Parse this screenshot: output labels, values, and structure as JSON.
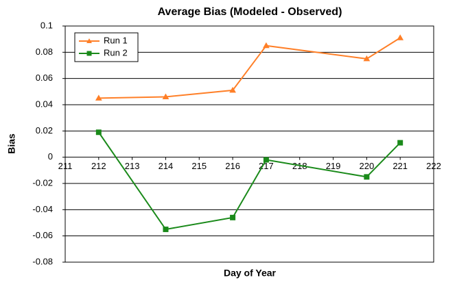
{
  "chart_data": {
    "type": "line",
    "title": "Average Bias (Modeled - Observed)",
    "x_label": "Day of Year",
    "y_label": "Bias",
    "x": [
      212,
      214,
      216,
      217,
      220,
      221
    ],
    "series": [
      {
        "name": "Run 1",
        "color": "#ff7f27",
        "marker": "triangle",
        "values": [
          0.045,
          0.046,
          0.051,
          0.085,
          0.075,
          0.091
        ]
      },
      {
        "name": "Run 2",
        "color": "#1a8a1a",
        "marker": "square",
        "values": [
          0.019,
          -0.055,
          -0.046,
          -0.002,
          -0.015,
          0.011
        ]
      }
    ],
    "xlim": [
      211,
      222
    ],
    "xticks": [
      211,
      212,
      213,
      214,
      215,
      216,
      217,
      218,
      219,
      220,
      221,
      222
    ],
    "ylim": [
      -0.08,
      0.1
    ],
    "yticks": [
      -0.08,
      -0.06,
      -0.04,
      -0.02,
      0,
      0.02,
      0.04,
      0.06,
      0.08,
      0.1
    ],
    "grid": true,
    "legend": "upper-left"
  }
}
